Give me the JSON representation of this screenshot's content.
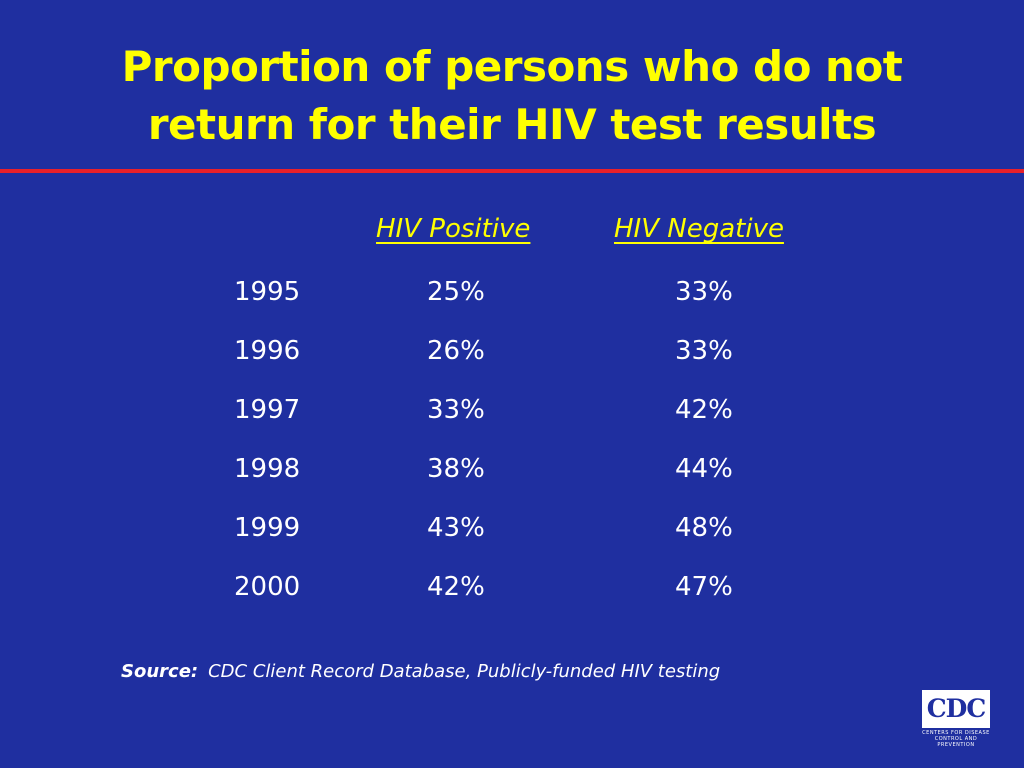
{
  "title": {
    "line1": "Proportion of persons who do not",
    "line2": "return for their HIV test results"
  },
  "table": {
    "columns": [
      "HIV Positive",
      "HIV Negative"
    ],
    "rows": [
      {
        "year": "1995",
        "positive": "25%",
        "negative": "33%"
      },
      {
        "year": "1996",
        "positive": "26%",
        "negative": "33%"
      },
      {
        "year": "1997",
        "positive": "33%",
        "negative": "42%"
      },
      {
        "year": "1998",
        "positive": "38%",
        "negative": "44%"
      },
      {
        "year": "1999",
        "positive": "43%",
        "negative": "48%"
      },
      {
        "year": "2000",
        "positive": "42%",
        "negative": "47%"
      }
    ]
  },
  "source": {
    "label": "Source:",
    "text": "CDC Client Record Database, Publicly-funded HIV testing"
  },
  "logo": {
    "text": "CDC",
    "subline1": "CENTERS FOR DISEASE",
    "subline2": "CONTROL AND PREVENTION"
  },
  "colors": {
    "background": "#1f2fa0",
    "title": "#ffff00",
    "divider": "#e8202a",
    "text": "#ffffff"
  }
}
